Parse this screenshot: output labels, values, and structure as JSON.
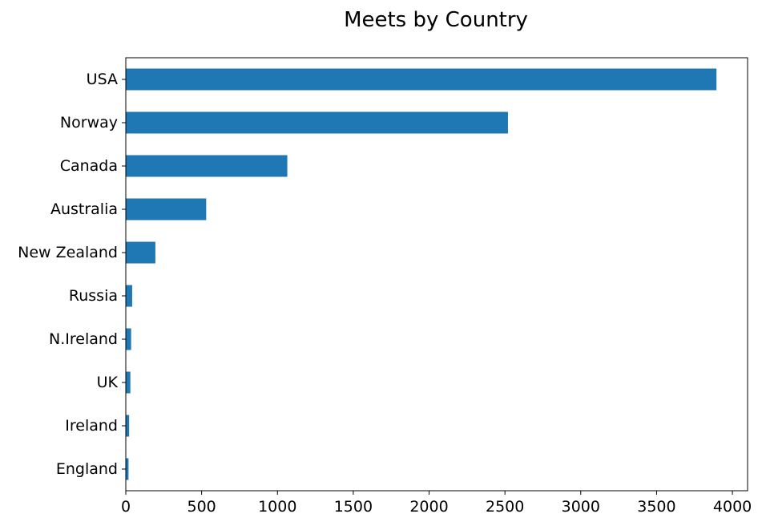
{
  "chart_data": {
    "type": "bar",
    "orientation": "horizontal",
    "title": "Meets by Country",
    "xlabel": "",
    "ylabel": "",
    "categories": [
      "USA",
      "Norway",
      "Canada",
      "Australia",
      "New Zealand",
      "Russia",
      "N.Ireland",
      "UK",
      "Ireland",
      "England"
    ],
    "values": [
      3895,
      2520,
      1065,
      530,
      195,
      42,
      35,
      30,
      22,
      18
    ],
    "xlim": [
      0,
      4100
    ],
    "xticks": [
      0,
      500,
      1000,
      1500,
      2000,
      2500,
      3000,
      3500,
      4000
    ],
    "grid": false,
    "legend": "none",
    "bar_color": "#1f77b4"
  }
}
